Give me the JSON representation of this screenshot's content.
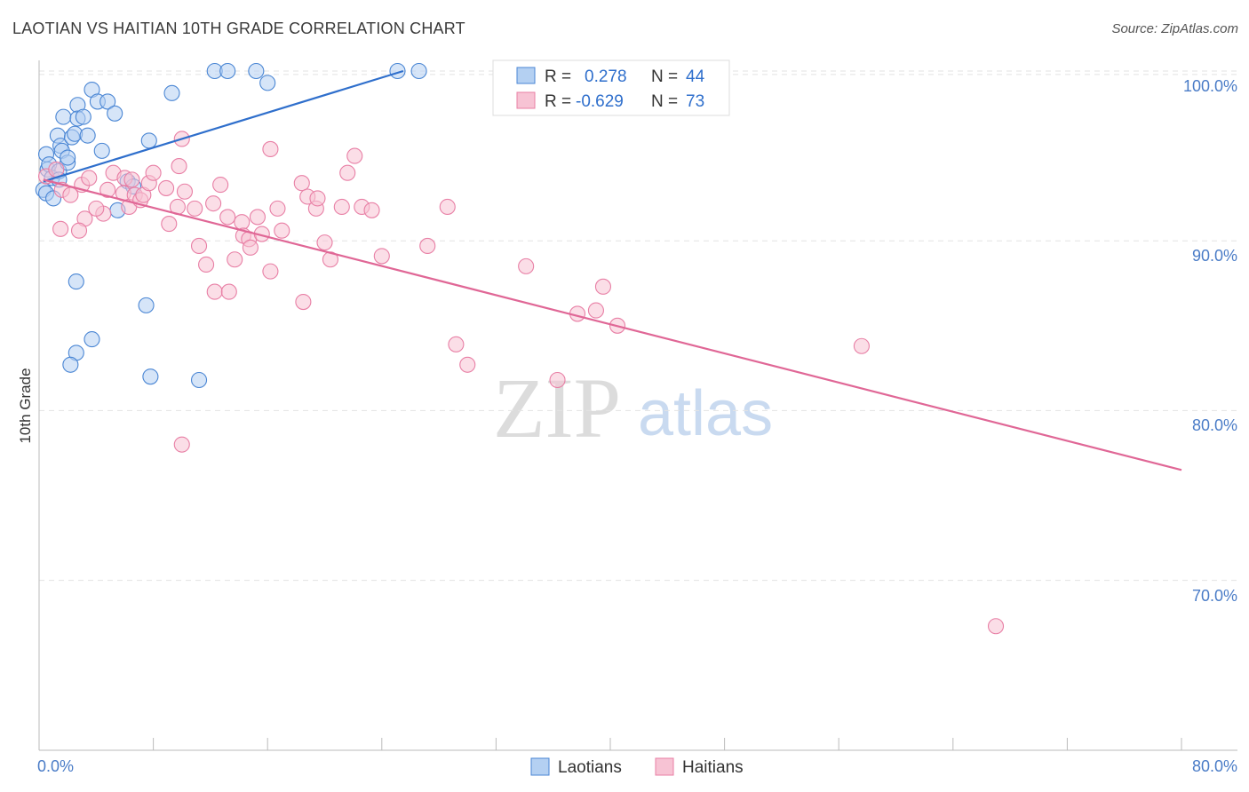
{
  "title": "LAOTIAN VS HAITIAN 10TH GRADE CORRELATION CHART",
  "source": "Source: ZipAtlas.com",
  "watermark": {
    "zip": "ZIP",
    "atlas": "atlas"
  },
  "colors": {
    "blue": "#4a86d4",
    "blue_fill": "#b4d0f2",
    "blue_line": "#2f6fcc",
    "pink": "#e87fa5",
    "pink_fill": "#f7c3d4",
    "pink_line": "#e06796",
    "axis_text": "#4a7cc7",
    "grid": "#e3e3e3"
  },
  "legend": {
    "rows": [
      {
        "r_label": "R =",
        "r_value": "0.278",
        "n_label": "N =",
        "n_value": "44",
        "series": "Laotians"
      },
      {
        "r_label": "R =",
        "r_value": "-0.629",
        "n_label": "N =",
        "n_value": "73",
        "series": "Haitians"
      }
    ]
  },
  "chart_data": {
    "type": "scatter",
    "title": "LAOTIAN VS HAITIAN 10TH GRADE CORRELATION CHART",
    "xlabel": "",
    "ylabel": "10th Grade",
    "xlim": [
      0,
      80
    ],
    "ylim": [
      60,
      100
    ],
    "x_tick_labels": [
      "0.0%",
      "80.0%"
    ],
    "y_ticks": [
      70,
      80,
      90,
      100
    ],
    "y_tick_labels": [
      "70.0%",
      "80.0%",
      "90.0%",
      "100.0%"
    ],
    "grid": true,
    "legend_position": "bottom-center",
    "series": [
      {
        "name": "Laotians",
        "R": 0.278,
        "N": 44,
        "trend": {
          "x": [
            0.3,
            25.5
          ],
          "y": [
            93.5,
            100.0
          ]
        },
        "points": [
          [
            0.3,
            93.0
          ],
          [
            0.5,
            92.8
          ],
          [
            0.6,
            94.2
          ],
          [
            0.9,
            93.7
          ],
          [
            0.5,
            95.1
          ],
          [
            0.7,
            94.5
          ],
          [
            1.0,
            92.5
          ],
          [
            1.3,
            96.2
          ],
          [
            1.4,
            94.1
          ],
          [
            1.4,
            93.6
          ],
          [
            1.5,
            95.6
          ],
          [
            1.6,
            95.3
          ],
          [
            1.7,
            97.3
          ],
          [
            2.0,
            94.6
          ],
          [
            2.0,
            94.9
          ],
          [
            2.3,
            96.1
          ],
          [
            2.5,
            96.3
          ],
          [
            2.7,
            98.0
          ],
          [
            2.7,
            97.2
          ],
          [
            3.1,
            97.3
          ],
          [
            3.4,
            96.2
          ],
          [
            3.7,
            98.9
          ],
          [
            4.1,
            98.2
          ],
          [
            4.4,
            95.3
          ],
          [
            4.8,
            98.2
          ],
          [
            5.3,
            97.5
          ],
          [
            6.2,
            93.5
          ],
          [
            6.6,
            93.2
          ],
          [
            7.7,
            95.9
          ],
          [
            9.3,
            98.7
          ],
          [
            12.3,
            100.0
          ],
          [
            13.2,
            100.0
          ],
          [
            16.0,
            99.3
          ],
          [
            15.2,
            100.0
          ],
          [
            25.1,
            100.0
          ],
          [
            26.6,
            100.0
          ],
          [
            2.6,
            87.6
          ],
          [
            3.7,
            84.2
          ],
          [
            2.6,
            83.4
          ],
          [
            2.2,
            82.7
          ],
          [
            5.5,
            91.8
          ],
          [
            7.5,
            86.2
          ],
          [
            7.8,
            82.0
          ],
          [
            11.2,
            81.8
          ]
        ]
      },
      {
        "name": "Haitians",
        "R": -0.629,
        "N": 73,
        "trend": {
          "x": [
            0.3,
            80.0
          ],
          "y": [
            93.6,
            76.5
          ]
        },
        "points": [
          [
            0.5,
            93.8
          ],
          [
            1.2,
            94.2
          ],
          [
            1.6,
            93.0
          ],
          [
            2.2,
            92.7
          ],
          [
            3.0,
            93.3
          ],
          [
            3.5,
            93.7
          ],
          [
            3.2,
            91.3
          ],
          [
            1.5,
            90.7
          ],
          [
            2.8,
            90.6
          ],
          [
            4.5,
            91.6
          ],
          [
            4.0,
            91.9
          ],
          [
            4.8,
            93.0
          ],
          [
            5.2,
            94.0
          ],
          [
            5.9,
            92.8
          ],
          [
            6.0,
            93.7
          ],
          [
            6.3,
            92.0
          ],
          [
            6.5,
            93.6
          ],
          [
            6.7,
            92.7
          ],
          [
            7.1,
            92.4
          ],
          [
            7.3,
            92.7
          ],
          [
            7.7,
            93.4
          ],
          [
            8.0,
            94.0
          ],
          [
            8.9,
            93.1
          ],
          [
            9.1,
            91.0
          ],
          [
            9.7,
            92.0
          ],
          [
            10.2,
            92.9
          ],
          [
            10.9,
            91.9
          ],
          [
            11.2,
            89.7
          ],
          [
            11.7,
            88.6
          ],
          [
            12.2,
            92.2
          ],
          [
            12.7,
            93.3
          ],
          [
            13.2,
            91.4
          ],
          [
            13.7,
            88.9
          ],
          [
            14.2,
            91.1
          ],
          [
            14.3,
            90.3
          ],
          [
            14.7,
            90.1
          ],
          [
            15.3,
            91.4
          ],
          [
            15.6,
            90.4
          ],
          [
            16.2,
            88.2
          ],
          [
            16.7,
            91.9
          ],
          [
            17.0,
            90.6
          ],
          [
            18.4,
            93.4
          ],
          [
            18.8,
            92.6
          ],
          [
            19.4,
            91.9
          ],
          [
            19.5,
            92.5
          ],
          [
            20.0,
            89.9
          ],
          [
            21.2,
            92.0
          ],
          [
            22.6,
            92.0
          ],
          [
            23.3,
            91.8
          ],
          [
            24.0,
            89.1
          ],
          [
            21.6,
            94.0
          ],
          [
            22.1,
            95.0
          ],
          [
            16.2,
            95.4
          ],
          [
            10.0,
            96.0
          ],
          [
            9.8,
            94.4
          ],
          [
            12.3,
            87.0
          ],
          [
            13.3,
            87.0
          ],
          [
            14.8,
            89.6
          ],
          [
            20.4,
            88.9
          ],
          [
            18.5,
            86.4
          ],
          [
            27.2,
            89.7
          ],
          [
            28.6,
            92.0
          ],
          [
            29.2,
            83.9
          ],
          [
            30.0,
            82.7
          ],
          [
            34.1,
            88.5
          ],
          [
            36.3,
            81.8
          ],
          [
            37.7,
            85.7
          ],
          [
            39.0,
            85.9
          ],
          [
            39.5,
            87.3
          ],
          [
            40.5,
            85.0
          ],
          [
            57.6,
            83.8
          ],
          [
            67.0,
            67.3
          ],
          [
            10.0,
            78.0
          ]
        ]
      }
    ]
  }
}
